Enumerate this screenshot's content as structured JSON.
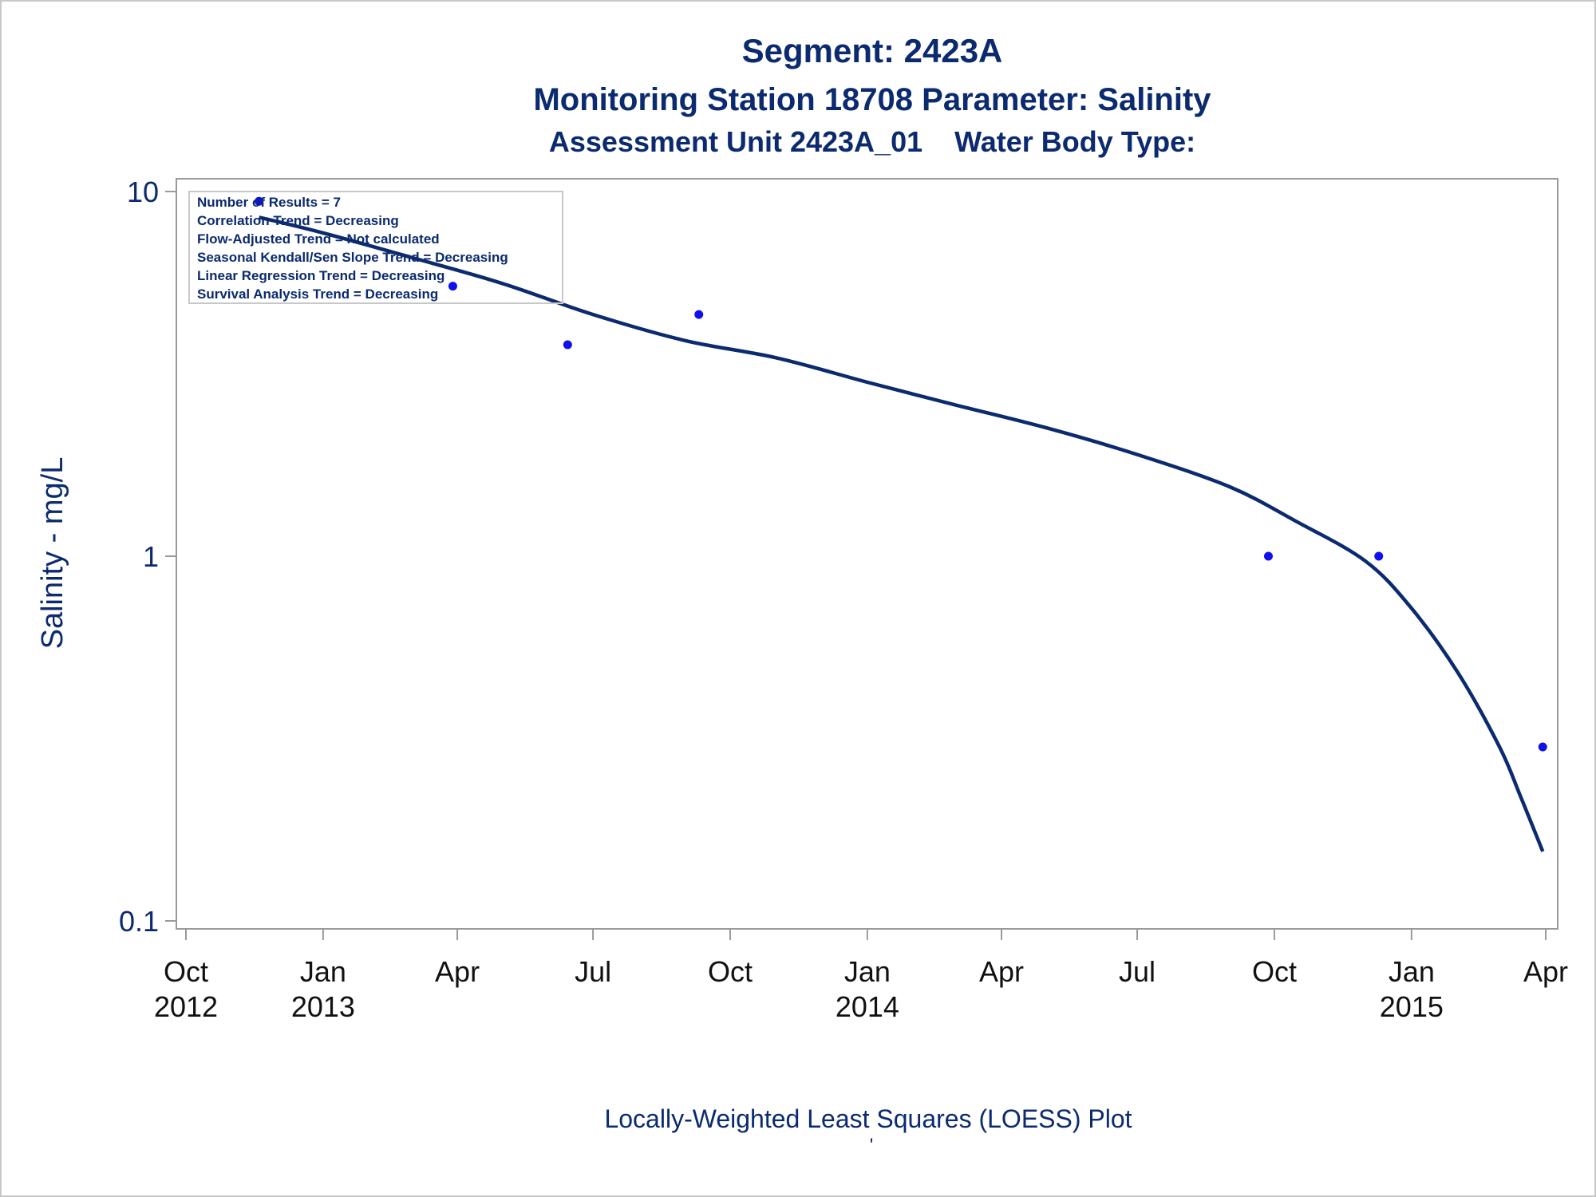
{
  "colors": {
    "text": "#0b2a6f",
    "curve": "#0b2a6f",
    "points": "#1010ee",
    "frame": "#9a9a9a",
    "tick_text": "#111111"
  },
  "titles": {
    "title": "Segment: 2423A",
    "subtitle": "Monitoring Station 18708 Parameter: Salinity",
    "subtitle2": "Assessment Unit 2423A_01    Water Body Type:"
  },
  "footnote": {
    "text": "Locally-Weighted Least Squares (LOESS) Plot",
    "mark": "'"
  },
  "inset_box": {
    "lines": [
      "Number of Results = 7",
      "Correlation Trend = Decreasing",
      "Flow-Adjusted Trend = Not calculated",
      "Seasonal Kendall/Sen Slope Trend = Decreasing",
      "Linear Regression Trend = Decreasing",
      "Survival Analysis Trend = Decreasing"
    ]
  },
  "chart_data": {
    "type": "scatter",
    "ylabel": "Salinity - mg/L",
    "xlabel": "",
    "y_scale": "log",
    "ylim": [
      0.1,
      10
    ],
    "y_ticks": [
      {
        "value": 0.1,
        "label": "0.1"
      },
      {
        "value": 1,
        "label": "1"
      },
      {
        "value": 10,
        "label": "10"
      }
    ],
    "xlim": [
      "2012-10-01",
      "2015-04-01"
    ],
    "x_ticks": [
      {
        "date": "2012-10-01",
        "label": "Oct",
        "year": "2012"
      },
      {
        "date": "2013-01-01",
        "label": "Jan",
        "year": "2013"
      },
      {
        "date": "2013-04-01",
        "label": "Apr",
        "year": ""
      },
      {
        "date": "2013-07-01",
        "label": "Jul",
        "year": ""
      },
      {
        "date": "2013-10-01",
        "label": "Oct",
        "year": ""
      },
      {
        "date": "2014-01-01",
        "label": "Jan",
        "year": "2014"
      },
      {
        "date": "2014-04-01",
        "label": "Apr",
        "year": ""
      },
      {
        "date": "2014-07-01",
        "label": "Jul",
        "year": ""
      },
      {
        "date": "2014-10-01",
        "label": "Oct",
        "year": ""
      },
      {
        "date": "2015-01-01",
        "label": "Jan",
        "year": "2015"
      },
      {
        "date": "2015-04-01",
        "label": "Apr",
        "year": ""
      }
    ],
    "grid": false,
    "legend": "top-left",
    "points": [
      {
        "x": "2012-11-19",
        "y": 9.4
      },
      {
        "x": "2013-03-29",
        "y": 5.5
      },
      {
        "x": "2013-06-14",
        "y": 3.8
      },
      {
        "x": "2013-09-10",
        "y": 4.6
      },
      {
        "x": "2014-09-27",
        "y": 1.0
      },
      {
        "x": "2014-12-10",
        "y": 1.0
      },
      {
        "x": "2015-03-30",
        "y": 0.3
      }
    ],
    "loess_curve": [
      {
        "x": "2012-11-19",
        "y": 8.5
      },
      {
        "x": "2013-01-01",
        "y": 7.7
      },
      {
        "x": "2013-03-01",
        "y": 6.6
      },
      {
        "x": "2013-05-01",
        "y": 5.6
      },
      {
        "x": "2013-07-01",
        "y": 4.6
      },
      {
        "x": "2013-09-01",
        "y": 3.9
      },
      {
        "x": "2013-11-01",
        "y": 3.5
      },
      {
        "x": "2014-01-01",
        "y": 3.0
      },
      {
        "x": "2014-03-01",
        "y": 2.6
      },
      {
        "x": "2014-05-01",
        "y": 2.25
      },
      {
        "x": "2014-07-01",
        "y": 1.9
      },
      {
        "x": "2014-09-01",
        "y": 1.55
      },
      {
        "x": "2014-10-15",
        "y": 1.25
      },
      {
        "x": "2014-12-01",
        "y": 0.97
      },
      {
        "x": "2015-01-01",
        "y": 0.72
      },
      {
        "x": "2015-02-01",
        "y": 0.48
      },
      {
        "x": "2015-03-01",
        "y": 0.3
      },
      {
        "x": "2015-03-15",
        "y": 0.22
      },
      {
        "x": "2015-03-30",
        "y": 0.155
      }
    ]
  }
}
